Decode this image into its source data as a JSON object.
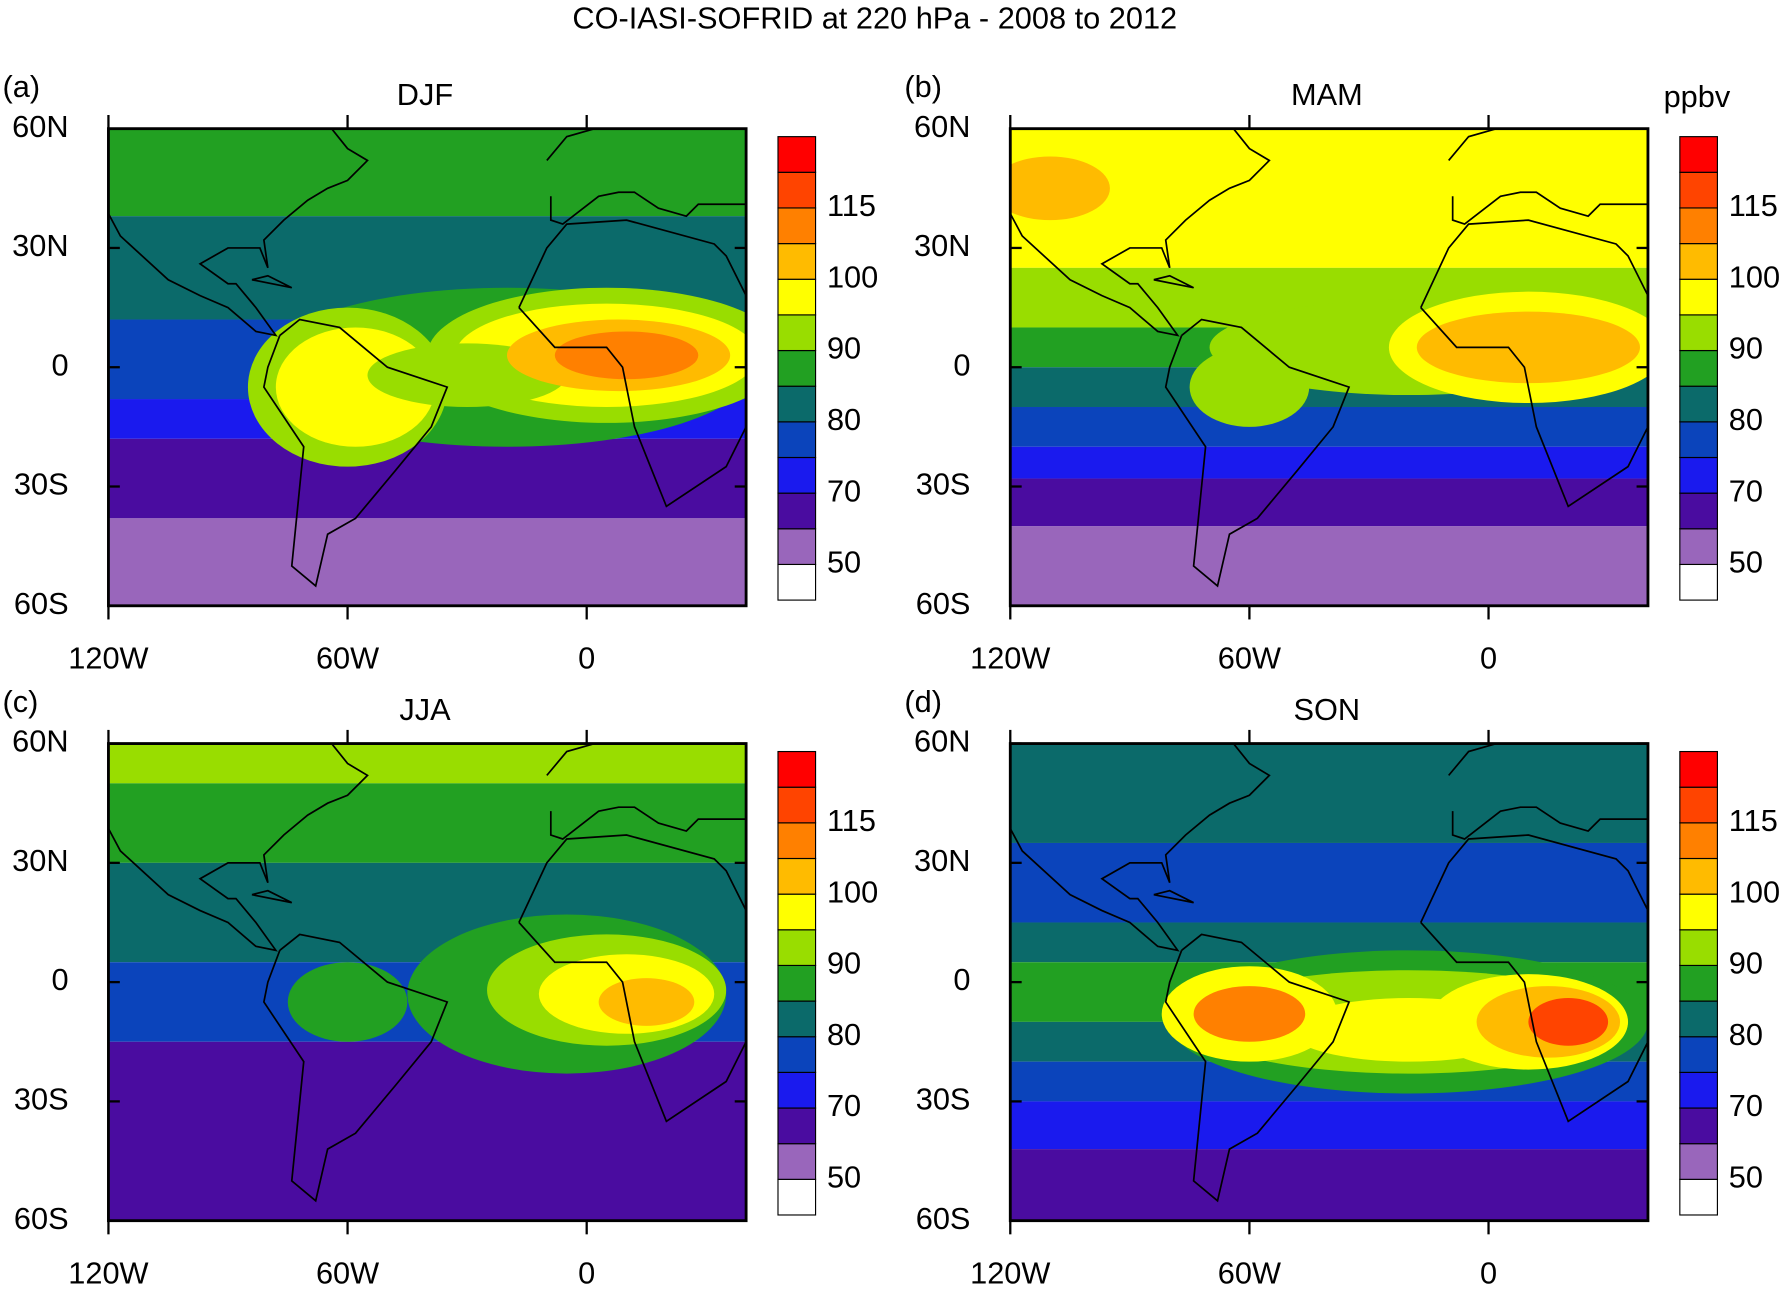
{
  "title": "CO-IASI-SOFRID at 220 hPa - 2008 to 2012",
  "units": "ppbv",
  "chart_data": [
    {
      "type": "map",
      "panel_label": "(a)",
      "title": "DJF",
      "xlim": [
        -120,
        40
      ],
      "xticks": [
        {
          "value": -120,
          "label": "120W"
        },
        {
          "value": -60,
          "label": "60W"
        },
        0
      ],
      "ylim": [
        -60,
        60
      ],
      "yticks": [
        {
          "value": -60,
          "label": "60S"
        },
        {
          "value": -30,
          "label": "30S"
        },
        0,
        {
          "value": 30,
          "label": "30N"
        },
        {
          "value": 60,
          "label": "60N"
        }
      ],
      "colorbar": {
        "ticks": [
          50,
          70,
          80,
          90,
          100,
          115
        ],
        "colors": [
          "#ffffff",
          "#9966bb",
          "#4a0ca0",
          "#1a1aee",
          "#0b44bb",
          "#0b6a6a",
          "#22a022",
          "#99dd00",
          "#ffff00",
          "#ffbb00",
          "#ff8000",
          "#ff4400",
          "#ff0000"
        ]
      }
    },
    {
      "type": "map",
      "panel_label": "(b)",
      "title": "MAM",
      "xlim": [
        -120,
        40
      ],
      "xticks": [
        {
          "value": -120,
          "label": "120W"
        },
        {
          "value": -60,
          "label": "60W"
        },
        0
      ],
      "ylim": [
        -60,
        60
      ],
      "yticks": [
        {
          "value": -60,
          "label": "60S"
        },
        {
          "value": -30,
          "label": "30S"
        },
        0,
        {
          "value": 30,
          "label": "30N"
        },
        {
          "value": 60,
          "label": "60N"
        }
      ],
      "colorbar": {
        "ticks": [
          50,
          70,
          80,
          90,
          100,
          115
        ],
        "colors": [
          "#ffffff",
          "#9966bb",
          "#4a0ca0",
          "#1a1aee",
          "#0b44bb",
          "#0b6a6a",
          "#22a022",
          "#99dd00",
          "#ffff00",
          "#ffbb00",
          "#ff8000",
          "#ff4400",
          "#ff0000"
        ]
      }
    },
    {
      "type": "map",
      "panel_label": "(c)",
      "title": "JJA",
      "xlim": [
        -120,
        40
      ],
      "xticks": [
        {
          "value": -120,
          "label": "120W"
        },
        {
          "value": -60,
          "label": "60W"
        },
        0
      ],
      "ylim": [
        -60,
        60
      ],
      "yticks": [
        {
          "value": -60,
          "label": "60S"
        },
        {
          "value": -30,
          "label": "30S"
        },
        0,
        {
          "value": 30,
          "label": "30N"
        },
        {
          "value": 60,
          "label": "60N"
        }
      ],
      "colorbar": {
        "ticks": [
          50,
          70,
          80,
          90,
          100,
          115
        ],
        "colors": [
          "#ffffff",
          "#9966bb",
          "#4a0ca0",
          "#1a1aee",
          "#0b44bb",
          "#0b6a6a",
          "#22a022",
          "#99dd00",
          "#ffff00",
          "#ffbb00",
          "#ff8000",
          "#ff4400",
          "#ff0000"
        ]
      }
    },
    {
      "type": "map",
      "panel_label": "(d)",
      "title": "SON",
      "xlim": [
        -120,
        40
      ],
      "xticks": [
        {
          "value": -120,
          "label": "120W"
        },
        {
          "value": -60,
          "label": "60W"
        },
        0
      ],
      "ylim": [
        -60,
        60
      ],
      "yticks": [
        {
          "value": -60,
          "label": "60S"
        },
        {
          "value": -30,
          "label": "30S"
        },
        0,
        {
          "value": 30,
          "label": "30N"
        },
        {
          "value": 60,
          "label": "60N"
        }
      ],
      "colorbar": {
        "ticks": [
          50,
          70,
          80,
          90,
          100,
          115
        ],
        "colors": [
          "#ffffff",
          "#9966bb",
          "#4a0ca0",
          "#1a1aee",
          "#0b44bb",
          "#0b6a6a",
          "#22a022",
          "#99dd00",
          "#ffff00",
          "#ffbb00",
          "#ff8000",
          "#ff4400",
          "#ff0000"
        ]
      }
    }
  ]
}
